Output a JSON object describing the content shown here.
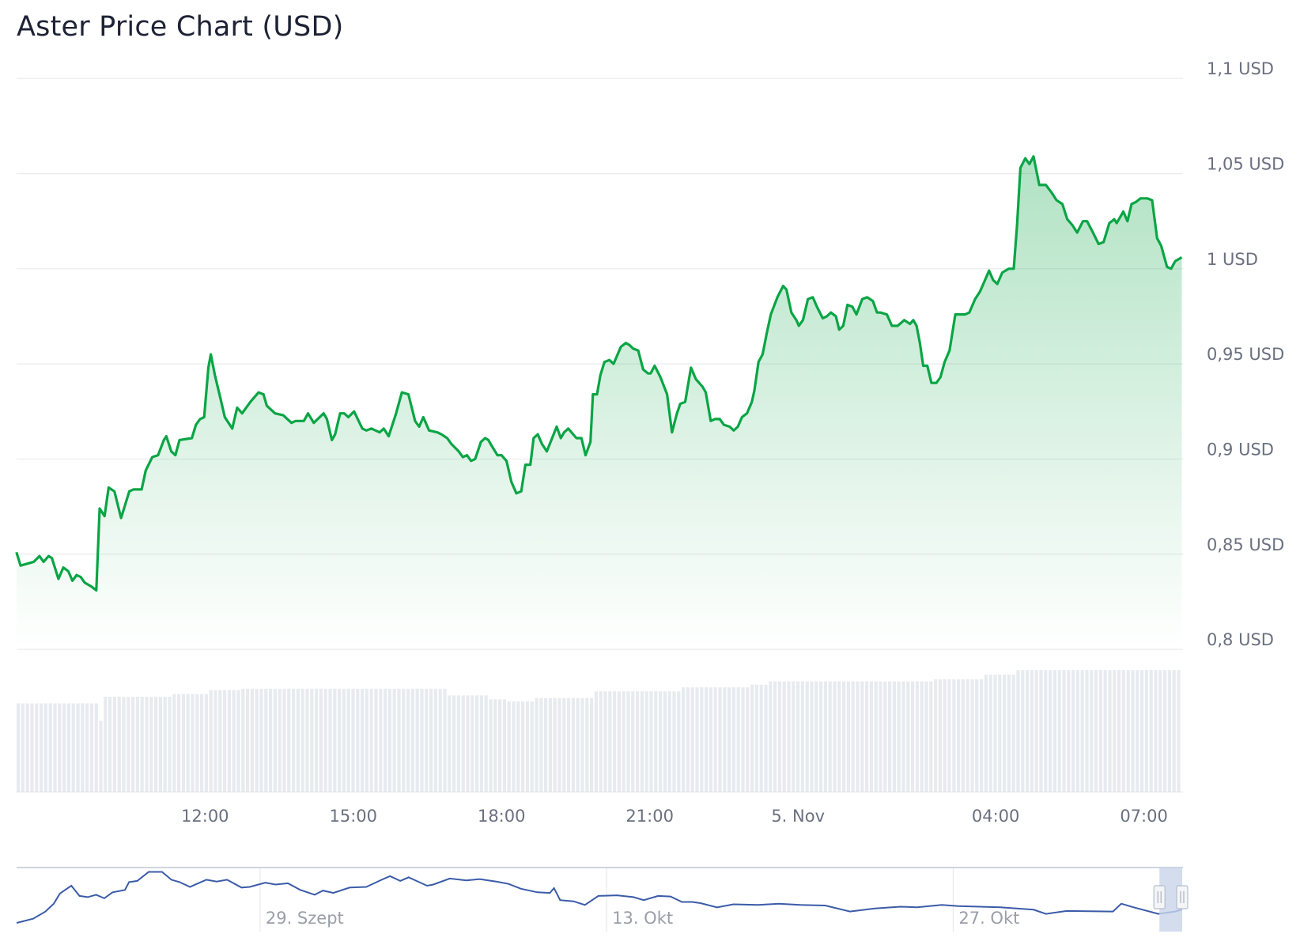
{
  "title": "Aster Price Chart (USD)",
  "colors": {
    "line": "#0aa545",
    "fill": "#0aa545",
    "volume": "#e7ebef",
    "grid": "#e9ebee",
    "navigator_line": "#3b5ba8",
    "navigator_mask": "#c9d4ea"
  },
  "chart_data": {
    "type": "area",
    "title": "Aster Price Chart (USD)",
    "xlabel": "",
    "ylabel": "",
    "ylim": [
      0.8,
      1.1
    ],
    "grid": true,
    "y_ticks": [
      {
        "value": 1.1,
        "label": "1,1 USD"
      },
      {
        "value": 1.05,
        "label": "1,05 USD"
      },
      {
        "value": 1.0,
        "label": "1 USD"
      },
      {
        "value": 0.95,
        "label": "0,95 USD"
      },
      {
        "value": 0.9,
        "label": "0,9 USD"
      },
      {
        "value": 0.85,
        "label": "0,85 USD"
      },
      {
        "value": 0.8,
        "label": "0,8 USD"
      }
    ],
    "x_ticks": [
      {
        "time": "12:00",
        "label": "12:00"
      },
      {
        "time": "15:00",
        "label": "15:00"
      },
      {
        "time": "18:00",
        "label": "18:00"
      },
      {
        "time": "21:00",
        "label": "21:00"
      },
      {
        "time": "00:00",
        "label": "5. Nov"
      },
      {
        "time": "04:00",
        "label": "04:00"
      },
      {
        "time": "07:00",
        "label": "07:00"
      }
    ],
    "x": [
      "08:11",
      "08:16",
      "08:32",
      "08:39",
      "08:44",
      "08:50",
      "08:54",
      "09:02",
      "09:08",
      "09:14",
      "09:19",
      "09:24",
      "09:29",
      "09:34",
      "09:42",
      "09:48",
      "09:52",
      "09:58",
      "10:03",
      "10:10",
      "10:18",
      "10:28",
      "10:33",
      "10:43",
      "10:48",
      "10:56",
      "11:03",
      "11:10",
      "11:13",
      "11:19",
      "11:24",
      "11:29",
      "11:44",
      "11:49",
      "11:54",
      "11:59",
      "12:04",
      "12:07",
      "12:12",
      "12:17",
      "12:24",
      "12:33",
      "12:39",
      "12:45",
      "12:55",
      "13:05",
      "13:11",
      "13:15",
      "13:25",
      "13:35",
      "13:45",
      "13:50",
      "14:00",
      "14:05",
      "14:12",
      "14:24",
      "14:28",
      "14:34",
      "14:38",
      "14:44",
      "14:49",
      "14:54",
      "15:01",
      "15:11",
      "15:16",
      "15:22",
      "15:32",
      "15:37",
      "15:43",
      "15:52",
      "15:59",
      "16:07",
      "16:15",
      "16:20",
      "16:25",
      "16:32",
      "16:42",
      "16:47",
      "16:54",
      "16:59",
      "17:08",
      "17:13",
      "17:18",
      "17:23",
      "17:28",
      "17:35",
      "17:40",
      "17:44",
      "17:48",
      "17:55",
      "18:00",
      "18:06",
      "18:12",
      "18:18",
      "18:24",
      "18:29",
      "18:35",
      "18:39",
      "18:44",
      "18:49",
      "18:55",
      "19:07",
      "19:12",
      "19:16",
      "19:21",
      "19:31",
      "19:37",
      "19:42",
      "19:48",
      "19:51",
      "19:56",
      "20:00",
      "20:05",
      "20:11",
      "20:16",
      "20:25",
      "20:31",
      "20:35",
      "20:40",
      "20:46",
      "20:52",
      "20:58",
      "21:01",
      "21:06",
      "21:13",
      "21:21",
      "21:27",
      "21:33",
      "21:37",
      "21:43",
      "21:50",
      "21:56",
      "22:04",
      "22:08",
      "22:14",
      "22:19",
      "22:25",
      "22:30",
      "22:37",
      "22:42",
      "22:47",
      "22:52",
      "22:58",
      "23:04",
      "23:07",
      "23:12",
      "23:17",
      "23:22",
      "23:27",
      "23:35",
      "23:42",
      "23:46",
      "23:52",
      "23:58",
      "00:01",
      "00:06",
      "00:12",
      "00:18",
      "00:23",
      "00:30",
      "00:35",
      "00:40",
      "00:46",
      "00:50",
      "00:55",
      "01:00",
      "01:06",
      "01:11",
      "01:18",
      "01:24",
      "01:31",
      "01:36",
      "01:40",
      "01:48",
      "01:54",
      "02:01",
      "02:09",
      "02:16",
      "02:20",
      "02:24",
      "02:28",
      "02:32",
      "02:37",
      "02:42",
      "02:48",
      "02:53",
      "02:58",
      "03:04",
      "03:11",
      "03:16",
      "03:23",
      "03:28",
      "03:35",
      "03:41",
      "03:45",
      "03:52",
      "03:57",
      "04:02",
      "04:08",
      "04:16",
      "04:22",
      "04:26",
      "04:30",
      "04:36",
      "04:41",
      "04:46",
      "04:53",
      "05:01",
      "05:08",
      "05:14",
      "05:21",
      "05:27",
      "05:33",
      "05:39",
      "05:46",
      "05:51",
      "05:57",
      "06:05",
      "06:11",
      "06:18",
      "06:24",
      "06:27",
      "06:35",
      "06:40",
      "06:45",
      "06:50",
      "06:56",
      "07:04",
      "07:10",
      "07:16",
      "07:21",
      "07:28",
      "07:33",
      "07:38",
      "07:46"
    ],
    "series": [
      {
        "values": [
          0.851,
          0.844,
          0.846,
          0.849,
          0.846,
          0.849,
          0.848,
          0.837,
          0.843,
          0.841,
          0.836,
          0.839,
          0.838,
          0.835,
          0.833,
          0.831,
          0.874,
          0.87,
          0.885,
          0.883,
          0.869,
          0.883,
          0.884,
          0.884,
          0.894,
          0.901,
          0.902,
          0.91,
          0.912,
          0.904,
          0.902,
          0.91,
          0.911,
          0.918,
          0.921,
          0.922,
          0.948,
          0.955,
          0.944,
          0.935,
          0.922,
          0.916,
          0.927,
          0.924,
          0.93,
          0.935,
          0.934,
          0.928,
          0.924,
          0.923,
          0.919,
          0.92,
          0.92,
          0.924,
          0.919,
          0.924,
          0.921,
          0.91,
          0.913,
          0.924,
          0.924,
          0.922,
          0.925,
          0.916,
          0.915,
          0.916,
          0.914,
          0.916,
          0.912,
          0.924,
          0.935,
          0.934,
          0.92,
          0.917,
          0.922,
          0.915,
          0.914,
          0.913,
          0.911,
          0.908,
          0.904,
          0.901,
          0.902,
          0.899,
          0.9,
          0.909,
          0.911,
          0.91,
          0.907,
          0.902,
          0.902,
          0.899,
          0.888,
          0.882,
          0.883,
          0.897,
          0.897,
          0.911,
          0.913,
          0.908,
          0.904,
          0.917,
          0.911,
          0.914,
          0.916,
          0.911,
          0.911,
          0.902,
          0.909,
          0.934,
          0.934,
          0.944,
          0.951,
          0.952,
          0.95,
          0.959,
          0.961,
          0.96,
          0.958,
          0.957,
          0.947,
          0.945,
          0.945,
          0.949,
          0.943,
          0.934,
          0.914,
          0.924,
          0.929,
          0.93,
          0.948,
          0.942,
          0.938,
          0.935,
          0.92,
          0.921,
          0.921,
          0.918,
          0.917,
          0.915,
          0.917,
          0.922,
          0.924,
          0.93,
          0.936,
          0.951,
          0.955,
          0.966,
          0.976,
          0.985,
          0.991,
          0.989,
          0.977,
          0.973,
          0.97,
          0.973,
          0.984,
          0.985,
          0.98,
          0.974,
          0.975,
          0.977,
          0.975,
          0.968,
          0.97,
          0.981,
          0.98,
          0.976,
          0.984,
          0.985,
          0.983,
          0.977,
          0.977,
          0.976,
          0.97,
          0.97,
          0.973,
          0.971,
          0.973,
          0.97,
          0.961,
          0.949,
          0.949,
          0.94,
          0.94,
          0.943,
          0.951,
          0.957,
          0.976,
          0.976,
          0.976,
          0.977,
          0.984,
          0.988,
          0.992,
          0.999,
          0.994,
          0.992,
          0.998,
          1.0,
          1.0,
          1.023,
          1.053,
          1.058,
          1.055,
          1.059,
          1.044,
          1.044,
          1.04,
          1.036,
          1.034,
          1.026,
          1.023,
          1.019,
          1.025,
          1.025,
          1.02,
          1.013,
          1.014,
          1.024,
          1.026,
          1.024,
          1.03,
          1.025,
          1.034,
          1.035,
          1.037,
          1.037,
          1.036,
          1.016,
          1.012,
          1.001,
          1.0,
          1.004,
          1.006
        ]
      }
    ],
    "volume_relative": [
      {
        "from": "08:11",
        "value": 0.66
      },
      {
        "from": "09:48",
        "value": 0.53
      },
      {
        "from": "09:52",
        "value": 0.71
      },
      {
        "from": "11:19",
        "value": 0.73
      },
      {
        "from": "12:04",
        "value": 0.76
      },
      {
        "from": "12:39",
        "value": 0.77
      },
      {
        "from": "16:54",
        "value": 0.72
      },
      {
        "from": "17:40",
        "value": 0.69
      },
      {
        "from": "18:06",
        "value": 0.675
      },
      {
        "from": "18:39",
        "value": 0.7
      },
      {
        "from": "19:51",
        "value": 0.75
      },
      {
        "from": "21:37",
        "value": 0.78
      },
      {
        "from": "23:02",
        "value": 0.8
      },
      {
        "from": "23:22",
        "value": 0.825
      },
      {
        "from": "02:44",
        "value": 0.84
      },
      {
        "from": "03:41",
        "value": 0.875
      },
      {
        "from": "04:20",
        "value": 0.41
      },
      {
        "from": "04:24",
        "value": 0.91
      }
    ],
    "navigator": {
      "labels": [
        {
          "date": "09-29",
          "label": "29. Szept"
        },
        {
          "date": "10-13",
          "label": "13. Okt"
        },
        {
          "date": "10-27",
          "label": "27. Okt"
        }
      ],
      "x": [
        "09-19 04",
        "09-19 20",
        "09-20 08",
        "09-20 16",
        "09-20 22",
        "09-21 09",
        "09-21 17",
        "09-22 01",
        "09-22 09",
        "09-22 17",
        "09-23 01",
        "09-23 13",
        "09-23 17",
        "09-24 01",
        "09-24 12",
        "09-25 01",
        "09-25 10",
        "09-25 18",
        "09-26 04",
        "09-26 20",
        "09-27 06",
        "09-27 16",
        "09-28 06",
        "09-28 14",
        "09-29 05",
        "09-29 15",
        "09-30 03",
        "09-30 15",
        "10-01 05",
        "10-01 13",
        "10-01 23",
        "10-02 15",
        "10-03 07",
        "10-03 22",
        "10-04 06",
        "10-04 16",
        "10-05 00",
        "10-05 18",
        "10-06 00",
        "10-06 16",
        "10-07 08",
        "10-07 21",
        "10-08 13",
        "10-09 01",
        "10-09 13",
        "10-10 05",
        "10-10 17",
        "10-10 21",
        "10-11 03",
        "10-11 16",
        "10-12 03",
        "10-12 16",
        "10-13 10",
        "10-14 02",
        "10-14 12",
        "10-15 02",
        "10-15 14",
        "10-16 01",
        "10-16 11",
        "10-16 19",
        "10-17 11",
        "10-18 03",
        "10-19 03",
        "10-19 23",
        "10-20 20",
        "10-21 20",
        "10-22 20",
        "10-23 20",
        "10-24 21",
        "10-25 13",
        "10-26 13",
        "10-27 05",
        "10-28 22",
        "10-30 06",
        "10-30 18",
        "10-31 14",
        "11-02 11",
        "11-02 19",
        "11-03 07",
        "11-04 07",
        "11-04 23",
        "11-05 06"
      ],
      "values_relative": [
        0.08,
        0.15,
        0.27,
        0.4,
        0.57,
        0.7,
        0.53,
        0.51,
        0.55,
        0.49,
        0.59,
        0.63,
        0.76,
        0.78,
        0.93,
        0.93,
        0.8,
        0.76,
        0.68,
        0.8,
        0.77,
        0.8,
        0.67,
        0.68,
        0.75,
        0.72,
        0.74,
        0.63,
        0.55,
        0.62,
        0.58,
        0.67,
        0.68,
        0.8,
        0.86,
        0.78,
        0.84,
        0.7,
        0.72,
        0.82,
        0.79,
        0.81,
        0.77,
        0.73,
        0.65,
        0.59,
        0.58,
        0.66,
        0.46,
        0.44,
        0.38,
        0.53,
        0.54,
        0.51,
        0.46,
        0.53,
        0.52,
        0.43,
        0.43,
        0.41,
        0.34,
        0.39,
        0.38,
        0.4,
        0.38,
        0.37,
        0.27,
        0.32,
        0.35,
        0.34,
        0.38,
        0.36,
        0.34,
        0.3,
        0.23,
        0.28,
        0.27,
        0.4,
        0.34,
        0.23,
        0.27,
        0.3
      ],
      "selected_range": [
        "11-04 08",
        "11-05 07"
      ]
    }
  }
}
